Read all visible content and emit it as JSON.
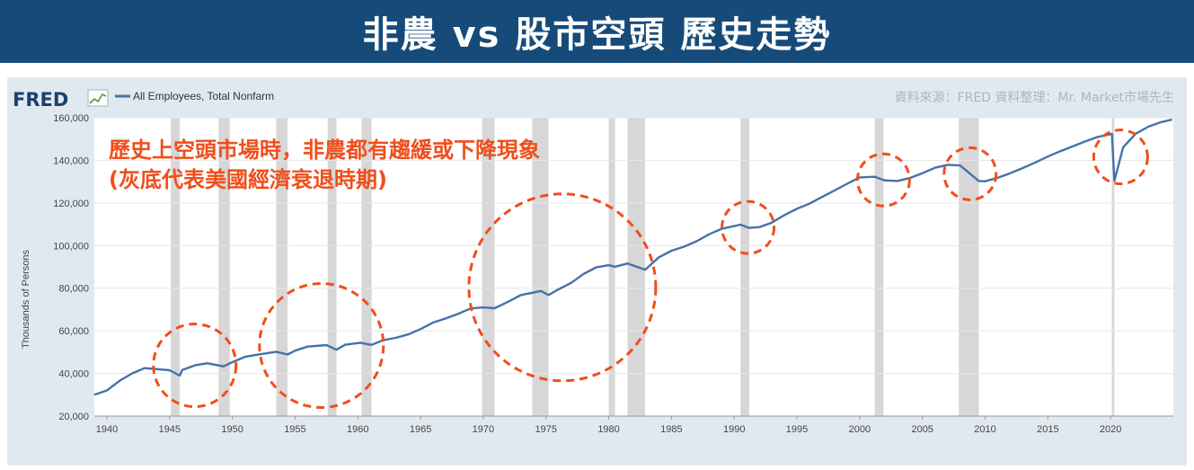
{
  "header": {
    "title": "非農 vs 股市空頭 歷史走勢"
  },
  "fred": {
    "logo_text": "FRED"
  },
  "source_note": "資料來源：FRED   資料整理：Mr. Market市場先生",
  "annotation": {
    "line1": "歷史上空頭市場時，非農都有趨緩或下降現象",
    "line2": "(灰底代表美國經濟衰退時期)"
  },
  "colors": {
    "header_bg": "#164b79",
    "panel_bg": "#e1e9f0",
    "series": "#4572a7",
    "recession": "#d7d7d7",
    "annotation": "#f04e1b"
  },
  "highlight_years": [
    1947,
    1957.1,
    1976.3,
    1991.1,
    2001.9,
    2008.8,
    2020.8
  ],
  "chart_data": {
    "type": "line",
    "title": "",
    "xlabel": "",
    "ylabel": "Thousands of Persons",
    "xlim": [
      1939,
      2025
    ],
    "ylim": [
      20000,
      160000
    ],
    "grid": true,
    "legend_position": "top-left",
    "xticks": [
      1940,
      1945,
      1950,
      1955,
      1960,
      1965,
      1970,
      1975,
      1980,
      1985,
      1990,
      1995,
      2000,
      2005,
      2010,
      2015,
      2020
    ],
    "yticks": [
      20000,
      40000,
      60000,
      80000,
      100000,
      120000,
      140000,
      160000
    ],
    "ytick_labels": [
      "20,000",
      "40,000",
      "60,000",
      "80,000",
      "100,000",
      "120,000",
      "140,000",
      "160,000"
    ],
    "recessions": [
      [
        1945.1,
        1945.8
      ],
      [
        1948.9,
        1949.8
      ],
      [
        1953.5,
        1954.4
      ],
      [
        1957.6,
        1958.3
      ],
      [
        1960.3,
        1961.1
      ],
      [
        1969.9,
        1970.9
      ],
      [
        1973.9,
        1975.2
      ],
      [
        1980.0,
        1980.5
      ],
      [
        1981.5,
        1982.9
      ],
      [
        1990.5,
        1991.2
      ],
      [
        2001.2,
        2001.9
      ],
      [
        2007.9,
        2009.5
      ],
      [
        2020.1,
        2020.3
      ]
    ],
    "series": [
      {
        "name": "All Employees, Total Nonfarm",
        "x": [
          1939,
          1940,
          1941,
          1942,
          1943,
          1944,
          1945,
          1945.8,
          1946,
          1947,
          1948,
          1949.3,
          1950,
          1951,
          1952,
          1953.5,
          1954.4,
          1955,
          1956,
          1957.5,
          1958.3,
          1959,
          1960.2,
          1961.1,
          1962,
          1963,
          1964,
          1965,
          1966,
          1967,
          1968,
          1969,
          1970,
          1970.9,
          1972,
          1973,
          1974.6,
          1975.2,
          1976,
          1977,
          1978,
          1979,
          1980,
          1980.5,
          1981.5,
          1982.9,
          1984,
          1985,
          1986,
          1987,
          1988,
          1989,
          1990.5,
          1991.2,
          1992,
          1993,
          1994,
          1995,
          1996,
          1997,
          1998,
          1999,
          2000,
          2001.2,
          2002,
          2003,
          2004,
          2005,
          2006,
          2007,
          2008,
          2009.5,
          2010,
          2011,
          2012,
          2013,
          2014,
          2015,
          2016,
          2017,
          2018,
          2019,
          2020.1,
          2020.3,
          2021,
          2022,
          2023,
          2024,
          2024.9
        ],
        "y": [
          30000,
          32000,
          36500,
          40000,
          42500,
          42000,
          41500,
          39000,
          41600,
          43800,
          44800,
          43300,
          45300,
          47800,
          48800,
          50200,
          48900,
          50700,
          52600,
          53300,
          51100,
          53500,
          54400,
          53400,
          55600,
          56700,
          58300,
          60800,
          63900,
          65800,
          68000,
          70500,
          71000,
          70600,
          73700,
          76800,
          78700,
          76800,
          79500,
          82500,
          86700,
          89800,
          90800,
          90100,
          91600,
          88700,
          94500,
          97600,
          99500,
          102000,
          105300,
          107900,
          109800,
          108300,
          108700,
          110800,
          114300,
          117300,
          119700,
          122800,
          125900,
          129000,
          132000,
          132300,
          130600,
          130300,
          131700,
          134000,
          136500,
          137900,
          137600,
          130300,
          130200,
          131800,
          134000,
          136400,
          139000,
          141800,
          144300,
          146600,
          148900,
          151000,
          152400,
          130400,
          146100,
          152500,
          155800,
          157900,
          159100
        ]
      }
    ]
  },
  "legend": {
    "label": "All Employees, Total Nonfarm"
  }
}
